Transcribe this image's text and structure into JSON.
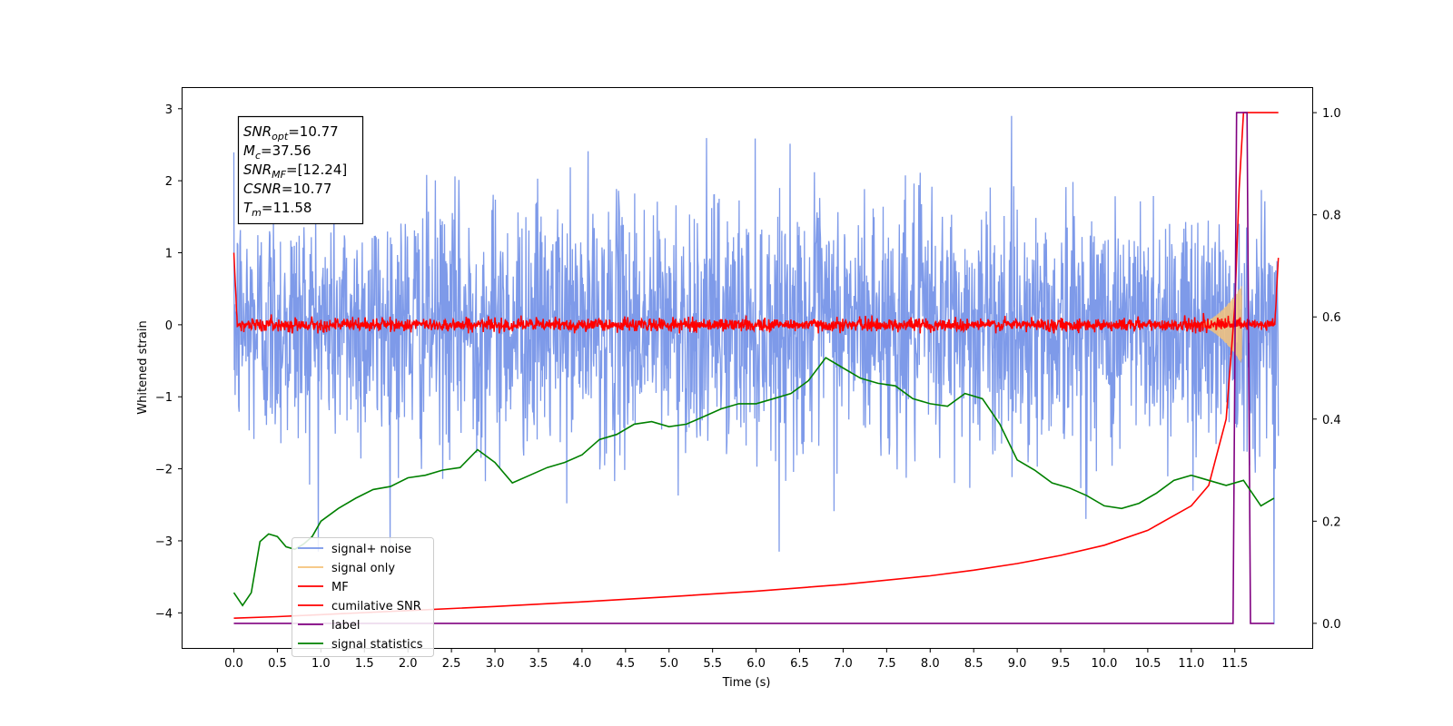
{
  "chart_data": {
    "type": "line",
    "xlabel": "Time (s)",
    "ylabel": "Whitened strain",
    "xlim": [
      -0.6,
      12.4
    ],
    "ylim": [
      -4.5,
      3.3
    ],
    "y2lim": [
      -0.05,
      1.05
    ],
    "xticks": [
      0.0,
      0.5,
      1.0,
      1.5,
      2.0,
      2.5,
      3.0,
      3.5,
      4.0,
      4.5,
      5.0,
      5.5,
      6.0,
      6.5,
      7.0,
      7.5,
      8.0,
      8.5,
      9.0,
      9.5,
      10.0,
      10.5,
      11.0,
      11.5
    ],
    "xtick_labels": [
      "0.0",
      "0.5",
      "1.0",
      "1.5",
      "2.0",
      "2.5",
      "3.0",
      "3.5",
      "4.0",
      "4.5",
      "5.0",
      "5.5",
      "6.0",
      "6.5",
      "7.0",
      "7.5",
      "8.0",
      "8.5",
      "9.0",
      "9.5",
      "10.0",
      "10.5",
      "11.0",
      "11.5"
    ],
    "yticks": [
      -4,
      -3,
      -2,
      -1,
      0,
      1,
      2,
      3
    ],
    "ytick_labels": [
      "−4",
      "−3",
      "−2",
      "−1",
      "0",
      "1",
      "2",
      "3"
    ],
    "y2ticks": [
      0.0,
      0.2,
      0.4,
      0.6,
      0.8,
      1.0
    ],
    "y2tick_labels": [
      "0.0",
      "0.2",
      "0.4",
      "0.6",
      "0.8",
      "1.0"
    ],
    "grid": false,
    "legend_placement": "lower-left",
    "duration": 12.0,
    "merger_time": 11.58,
    "annotation": [
      {
        "base": "SNR",
        "sub": "opt",
        "value": "=10.77"
      },
      {
        "base": "M",
        "sub": "c",
        "value": "=37.56"
      },
      {
        "base": "SNR",
        "sub": "MF",
        "value": "=[12.24]"
      },
      {
        "base": "CSNR",
        "sub": "",
        "value": "=10.77"
      },
      {
        "base": "T",
        "sub": "m",
        "value": "=11.58"
      }
    ],
    "series": [
      {
        "name": "signal+ noise",
        "color": "#7795e8",
        "axis": "left",
        "envelope": {
          "mean": 0.0,
          "std": 0.75,
          "peak_max": 2.9,
          "peak_min": -3.15
        }
      },
      {
        "name": "signal only",
        "color": "#f5c37a",
        "axis": "left",
        "envelope": {
          "max_amplitude": 0.55,
          "growth_start": 11.0
        }
      },
      {
        "name": "MF",
        "color": "#ff0000",
        "axis": "left",
        "envelope": {
          "mean": 0.0,
          "range": [
            -0.12,
            0.25
          ],
          "start_value": 1.0,
          "end_value": 0.93
        }
      },
      {
        "name": "cumilative SNR",
        "color": "#ff0000",
        "axis": "right",
        "x": [
          0.0,
          0.5,
          1.0,
          2.0,
          3.0,
          4.0,
          5.0,
          6.0,
          7.0,
          8.0,
          8.5,
          9.0,
          9.5,
          10.0,
          10.5,
          11.0,
          11.2,
          11.4,
          11.5,
          11.55,
          11.6,
          11.7,
          12.0
        ],
        "y": [
          0.01,
          0.013,
          0.017,
          0.025,
          0.033,
          0.042,
          0.052,
          0.063,
          0.076,
          0.093,
          0.104,
          0.117,
          0.133,
          0.153,
          0.182,
          0.23,
          0.27,
          0.4,
          0.62,
          0.85,
          1.0,
          1.0,
          1.0
        ]
      },
      {
        "name": "label",
        "color": "#800080",
        "axis": "right",
        "x": [
          0.0,
          11.48,
          11.52,
          11.64,
          11.68,
          11.95
        ],
        "y": [
          0.0,
          0.0,
          1.0,
          1.0,
          0.0,
          0.0
        ]
      },
      {
        "name": "signal statistics",
        "color": "#008000",
        "axis": "right",
        "x": [
          0.0,
          0.1,
          0.2,
          0.3,
          0.4,
          0.5,
          0.6,
          0.7,
          0.8,
          0.9,
          1.0,
          1.2,
          1.4,
          1.6,
          1.8,
          2.0,
          2.2,
          2.4,
          2.6,
          2.8,
          3.0,
          3.2,
          3.4,
          3.6,
          3.8,
          4.0,
          4.2,
          4.4,
          4.6,
          4.8,
          5.0,
          5.2,
          5.4,
          5.6,
          5.8,
          6.0,
          6.2,
          6.4,
          6.6,
          6.8,
          7.0,
          7.2,
          7.4,
          7.6,
          7.8,
          8.0,
          8.2,
          8.4,
          8.6,
          8.8,
          9.0,
          9.2,
          9.4,
          9.6,
          9.8,
          10.0,
          10.2,
          10.4,
          10.6,
          10.8,
          11.0,
          11.2,
          11.4,
          11.6,
          11.8,
          11.95
        ],
        "y": [
          0.06,
          0.035,
          0.06,
          0.16,
          0.175,
          0.17,
          0.15,
          0.145,
          0.155,
          0.17,
          0.2,
          0.225,
          0.245,
          0.262,
          0.268,
          0.285,
          0.29,
          0.3,
          0.305,
          0.34,
          0.315,
          0.275,
          0.29,
          0.305,
          0.315,
          0.33,
          0.36,
          0.37,
          0.39,
          0.395,
          0.385,
          0.39,
          0.405,
          0.42,
          0.43,
          0.43,
          0.44,
          0.45,
          0.475,
          0.52,
          0.5,
          0.48,
          0.47,
          0.465,
          0.44,
          0.43,
          0.425,
          0.45,
          0.44,
          0.39,
          0.32,
          0.3,
          0.275,
          0.265,
          0.25,
          0.23,
          0.225,
          0.235,
          0.255,
          0.28,
          0.29,
          0.28,
          0.27,
          0.28,
          0.23,
          0.245
        ]
      }
    ]
  }
}
